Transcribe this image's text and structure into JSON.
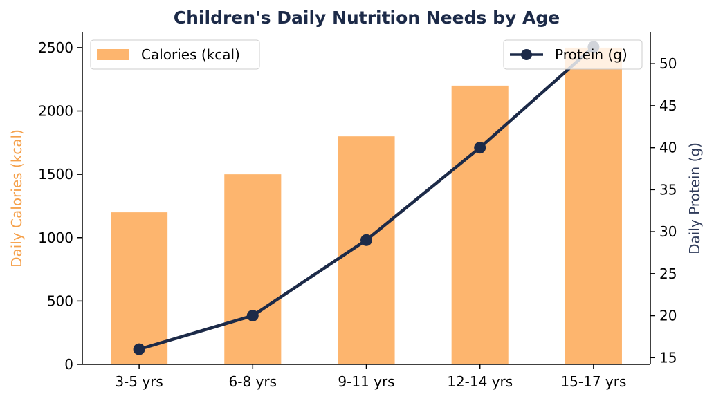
{
  "chart_data": {
    "type": "bar+line",
    "title": "Children's Daily Nutrition Needs by Age",
    "categories": [
      "3-5 yrs",
      "6-8 yrs",
      "9-11 yrs",
      "12-14 yrs",
      "15-17 yrs"
    ],
    "series": [
      {
        "name": "Calories (kcal)",
        "type": "bar",
        "axis": "left",
        "color": "#FDB56E",
        "values": [
          1200,
          1500,
          1800,
          2200,
          2500
        ]
      },
      {
        "name": "Protein (g)",
        "type": "line",
        "axis": "right",
        "color": "#1C2A48",
        "values": [
          16,
          20,
          29,
          40,
          52
        ]
      }
    ],
    "ylabel_left": "Daily Calories (kcal)",
    "ylabel_left_color": "#F5A04A",
    "ylabel_right": "Daily Protein (g)",
    "ylabel_right_color": "#2F3B5A",
    "ylim_left": [
      0,
      2625
    ],
    "yticks_left": [
      "0",
      "500",
      "1000",
      "1500",
      "2000",
      "2500"
    ],
    "ylim_right": [
      14.2,
      53.8
    ],
    "yticks_right": [
      "15",
      "20",
      "25",
      "30",
      "35",
      "40",
      "45",
      "50"
    ],
    "grid": false,
    "legend_bar_position": "upper-left",
    "legend_line_position": "upper-right",
    "title_color": "#1C2A48"
  }
}
